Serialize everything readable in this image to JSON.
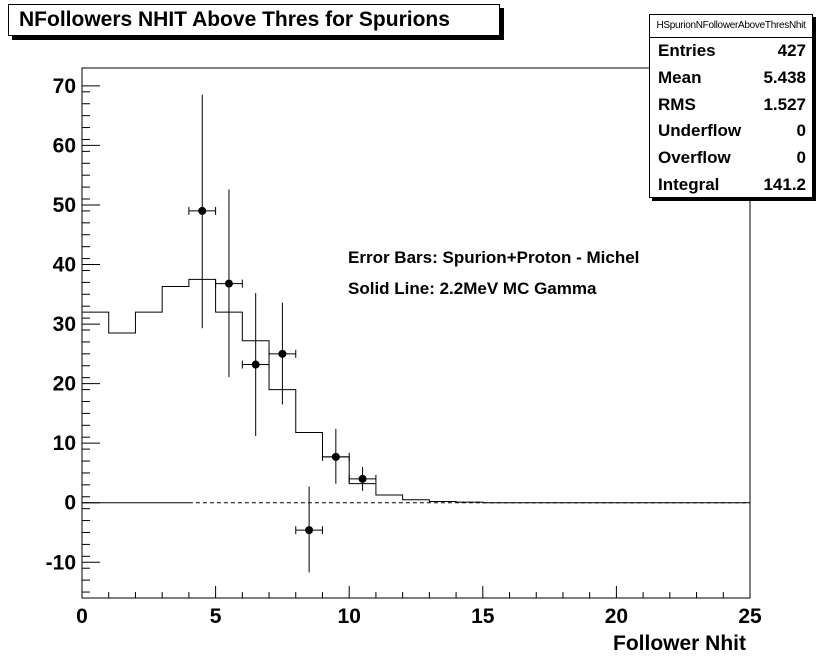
{
  "chart_data": {
    "type": "histogram",
    "title": "NFollowers NHIT Above Thres for Spurions",
    "xlabel": "Follower Nhit",
    "ylabel": "",
    "xlim": [
      0,
      25
    ],
    "ylim": [
      -16,
      73
    ],
    "x_ticks": [
      "0",
      "5",
      "10",
      "15",
      "20",
      "25"
    ],
    "y_ticks": [
      "-10",
      "0",
      "10",
      "20",
      "30",
      "40",
      "50",
      "60",
      "70"
    ],
    "zero_line": "dashed",
    "grid": false,
    "annotations": [
      "Error Bars: Spurion+Proton - Michel",
      "Solid Line: 2.2MeV MC Gamma"
    ],
    "stats_box": {
      "name": "HSpurionNFollowerAboveThresNhit",
      "rows": [
        {
          "label": "Entries",
          "value": "427"
        },
        {
          "label": "Mean",
          "value": "5.438"
        },
        {
          "label": "RMS",
          "value": "1.527"
        },
        {
          "label": "Underflow",
          "value": "0"
        },
        {
          "label": "Overflow",
          "value": "0"
        },
        {
          "label": "Integral",
          "value": "141.2"
        }
      ]
    },
    "series": [
      {
        "style": "step",
        "bin_edges": [
          0,
          1,
          2,
          3,
          4,
          5,
          6,
          7,
          8,
          9,
          10,
          11,
          12,
          13,
          14,
          15,
          16,
          17,
          18,
          19,
          20,
          21,
          22,
          23,
          24,
          25
        ],
        "values": [
          32,
          28.5,
          32,
          36.3,
          37.5,
          32,
          27.2,
          19,
          11.8,
          7.7,
          3.2,
          1.3,
          0.5,
          0.2,
          0.1,
          0,
          0,
          0,
          0,
          0,
          0,
          0,
          0,
          0,
          0
        ]
      },
      {
        "style": "points_with_errors",
        "points": [
          {
            "x": 4.5,
            "y": 49,
            "xerr": 0.5,
            "yerr_low": 19.7,
            "yerr_high": 19.5
          },
          {
            "x": 5.5,
            "y": 36.8,
            "xerr": 0.5,
            "yerr_low": 15.7,
            "yerr_high": 15.8
          },
          {
            "x": 6.5,
            "y": 23.2,
            "xerr": 0.5,
            "yerr_low": 12,
            "yerr_high": 12
          },
          {
            "x": 7.5,
            "y": 25,
            "xerr": 0.5,
            "yerr_low": 8.5,
            "yerr_high": 8.6
          },
          {
            "x": 8.5,
            "y": -4.6,
            "xerr": 0.5,
            "yerr_low": 7.1,
            "yerr_high": 7.3
          },
          {
            "x": 9.5,
            "y": 7.7,
            "xerr": 0.5,
            "yerr_low": 4.5,
            "yerr_high": 4.7
          },
          {
            "x": 10.5,
            "y": 4,
            "xerr": 0.5,
            "yerr_low": 2,
            "yerr_high": 2
          }
        ]
      }
    ]
  }
}
